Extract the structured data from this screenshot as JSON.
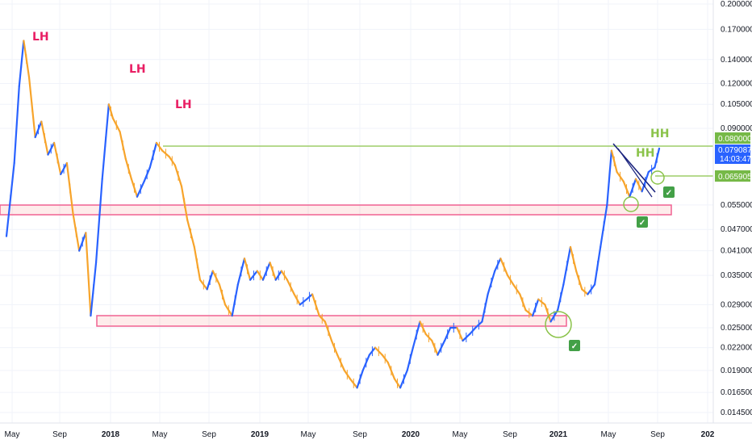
{
  "chart_data": {
    "type": "line",
    "x_tick_labels": [
      "May",
      "Sep",
      "2018",
      "May",
      "Sep",
      "2019",
      "May",
      "Sep",
      "2020",
      "May",
      "Sep",
      "2021",
      "May",
      "Sep",
      "202"
    ],
    "y_scale": "log",
    "y_tick_labels": [
      "0.200000",
      "0.170000",
      "0.140000",
      "0.120000",
      "0.105000",
      "0.090000",
      "0.055000",
      "0.047000",
      "0.041000",
      "0.035000",
      "0.029000",
      "0.025000",
      "0.022000",
      "0.019000",
      "0.016500",
      "0.014500"
    ],
    "y_tick_values": [
      0.2,
      0.17,
      0.14,
      0.12,
      0.105,
      0.09,
      0.055,
      0.047,
      0.041,
      0.035,
      0.029,
      0.025,
      0.022,
      0.019,
      0.0165,
      0.0145
    ],
    "price_badges": [
      {
        "id": "resistance",
        "value": "0.080000",
        "price": 0.08,
        "color": "#76b947"
      },
      {
        "id": "last",
        "value": "0.079087",
        "sub": "14:03:47",
        "price": 0.079087,
        "color": "#2962ff"
      },
      {
        "id": "support",
        "value": "0.065905",
        "price": 0.065905,
        "color": "#76b947"
      }
    ],
    "annotations": [
      {
        "text": "LH",
        "color": "#e91e63"
      },
      {
        "text": "LH",
        "color": "#e91e63"
      },
      {
        "text": "LH",
        "color": "#e91e63"
      },
      {
        "text": "HH",
        "color": "#8bc34a"
      },
      {
        "text": "HH",
        "color": "#8bc34a"
      }
    ],
    "checkmarks": [
      "✓",
      "✓",
      "✓"
    ],
    "series": [
      {
        "color_up": "#2962ff",
        "color_down": "#f7a42b",
        "points": [
          [
            "2017-05-01",
            0.045
          ],
          [
            "2017-05-20",
            0.072
          ],
          [
            "2017-06-01",
            0.118
          ],
          [
            "2017-06-12",
            0.158
          ],
          [
            "2017-06-25",
            0.125
          ],
          [
            "2017-07-10",
            0.085
          ],
          [
            "2017-07-25",
            0.094
          ],
          [
            "2017-08-10",
            0.076
          ],
          [
            "2017-08-25",
            0.082
          ],
          [
            "2017-09-10",
            0.067
          ],
          [
            "2017-09-25",
            0.072
          ],
          [
            "2017-10-10",
            0.052
          ],
          [
            "2017-10-25",
            0.041
          ],
          [
            "2017-11-10",
            0.046
          ],
          [
            "2017-11-22",
            0.027
          ],
          [
            "2017-12-05",
            0.038
          ],
          [
            "2017-12-20",
            0.065
          ],
          [
            "2018-01-05",
            0.105
          ],
          [
            "2018-01-15",
            0.096
          ],
          [
            "2018-02-01",
            0.088
          ],
          [
            "2018-02-15",
            0.074
          ],
          [
            "2018-03-01",
            0.065
          ],
          [
            "2018-03-15",
            0.058
          ],
          [
            "2018-04-01",
            0.064
          ],
          [
            "2018-04-15",
            0.07
          ],
          [
            "2018-05-01",
            0.082
          ],
          [
            "2018-05-15",
            0.078
          ],
          [
            "2018-06-01",
            0.075
          ],
          [
            "2018-06-15",
            0.071
          ],
          [
            "2018-07-01",
            0.062
          ],
          [
            "2018-07-15",
            0.05
          ],
          [
            "2018-08-01",
            0.042
          ],
          [
            "2018-08-15",
            0.034
          ],
          [
            "2018-09-01",
            0.032
          ],
          [
            "2018-09-15",
            0.036
          ],
          [
            "2018-10-01",
            0.033
          ],
          [
            "2018-10-15",
            0.029
          ],
          [
            "2018-11-01",
            0.027
          ],
          [
            "2018-11-15",
            0.033
          ],
          [
            "2018-12-01",
            0.039
          ],
          [
            "2018-12-15",
            0.034
          ],
          [
            "2019-01-01",
            0.036
          ],
          [
            "2019-01-15",
            0.034
          ],
          [
            "2019-02-01",
            0.038
          ],
          [
            "2019-02-15",
            0.034
          ],
          [
            "2019-03-01",
            0.036
          ],
          [
            "2019-03-15",
            0.034
          ],
          [
            "2019-04-01",
            0.031
          ],
          [
            "2019-04-15",
            0.029
          ],
          [
            "2019-05-01",
            0.03
          ],
          [
            "2019-05-15",
            0.031
          ],
          [
            "2019-06-01",
            0.027
          ],
          [
            "2019-06-15",
            0.026
          ],
          [
            "2019-07-01",
            0.023
          ],
          [
            "2019-07-15",
            0.021
          ],
          [
            "2019-08-01",
            0.019
          ],
          [
            "2019-08-15",
            0.018
          ],
          [
            "2019-09-01",
            0.017
          ],
          [
            "2019-09-15",
            0.019
          ],
          [
            "2019-10-01",
            0.021
          ],
          [
            "2019-10-15",
            0.022
          ],
          [
            "2019-11-01",
            0.021
          ],
          [
            "2019-11-15",
            0.02
          ],
          [
            "2019-12-01",
            0.018
          ],
          [
            "2019-12-15",
            0.017
          ],
          [
            "2020-01-01",
            0.019
          ],
          [
            "2020-01-15",
            0.022
          ],
          [
            "2020-02-01",
            0.026
          ],
          [
            "2020-02-15",
            0.024
          ],
          [
            "2020-03-01",
            0.023
          ],
          [
            "2020-03-15",
            0.021
          ],
          [
            "2020-04-01",
            0.023
          ],
          [
            "2020-04-15",
            0.025
          ],
          [
            "2020-05-01",
            0.025
          ],
          [
            "2020-05-15",
            0.023
          ],
          [
            "2020-06-01",
            0.024
          ],
          [
            "2020-06-15",
            0.025
          ],
          [
            "2020-07-01",
            0.026
          ],
          [
            "2020-07-15",
            0.031
          ],
          [
            "2020-08-01",
            0.036
          ],
          [
            "2020-08-15",
            0.039
          ],
          [
            "2020-09-01",
            0.035
          ],
          [
            "2020-09-15",
            0.033
          ],
          [
            "2020-10-01",
            0.031
          ],
          [
            "2020-10-15",
            0.028
          ],
          [
            "2020-11-01",
            0.027
          ],
          [
            "2020-11-15",
            0.03
          ],
          [
            "2020-12-01",
            0.029
          ],
          [
            "2020-12-15",
            0.026
          ],
          [
            "2021-01-01",
            0.028
          ],
          [
            "2021-01-15",
            0.033
          ],
          [
            "2021-02-01",
            0.042
          ],
          [
            "2021-02-15",
            0.036
          ],
          [
            "2021-03-01",
            0.032
          ],
          [
            "2021-03-15",
            0.031
          ],
          [
            "2021-04-01",
            0.033
          ],
          [
            "2021-04-15",
            0.042
          ],
          [
            "2021-05-01",
            0.055
          ],
          [
            "2021-05-12",
            0.078
          ],
          [
            "2021-05-25",
            0.068
          ],
          [
            "2021-06-10",
            0.064
          ],
          [
            "2021-06-25",
            0.058
          ],
          [
            "2021-07-10",
            0.065
          ],
          [
            "2021-07-25",
            0.06
          ],
          [
            "2021-08-10",
            0.068
          ],
          [
            "2021-08-25",
            0.07
          ],
          [
            "2021-09-05",
            0.079087
          ]
        ]
      }
    ],
    "grid": true,
    "legend": "none"
  }
}
